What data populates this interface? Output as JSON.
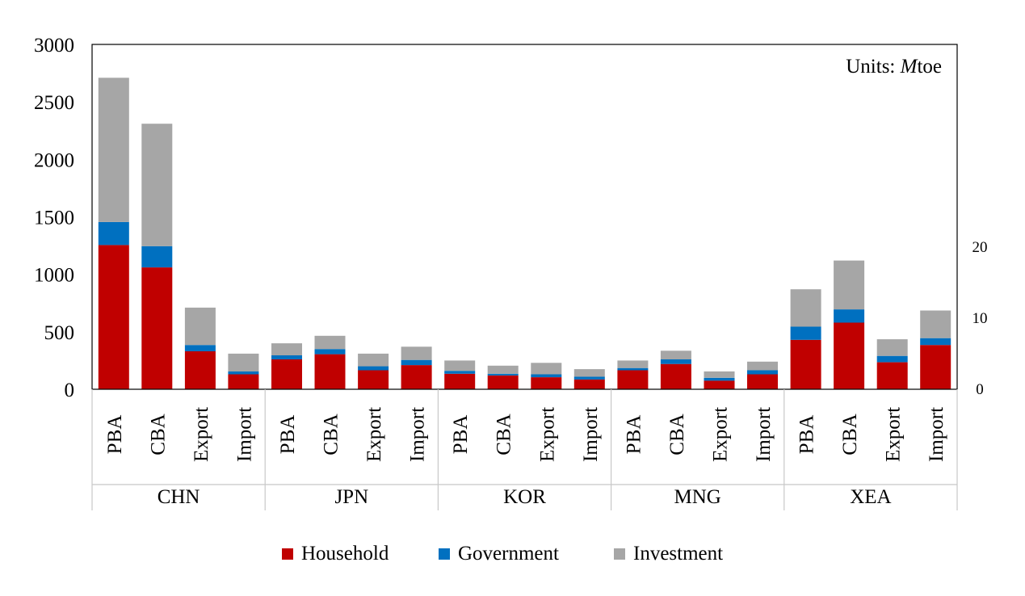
{
  "chart_data": {
    "type": "bar",
    "stacked": true,
    "annotation_prefix": "Units: ",
    "annotation_unit": "M",
    "annotation_suffix": "toe",
    "ylim": [
      0,
      3000
    ],
    "yticks": [
      0,
      500,
      1000,
      1500,
      2000,
      2500,
      3000
    ],
    "secondary_yticks": [
      0,
      10,
      20
    ],
    "groups": [
      {
        "name": "CHN",
        "categories": [
          "PBA",
          "CBA",
          "Export",
          "Import"
        ]
      },
      {
        "name": "JPN",
        "categories": [
          "PBA",
          "CBA",
          "Export",
          "Import"
        ]
      },
      {
        "name": "KOR",
        "categories": [
          "PBA",
          "CBA",
          "Export",
          "Import"
        ]
      },
      {
        "name": "MNG",
        "categories": [
          "PBA",
          "CBA",
          "Export",
          "Import"
        ]
      },
      {
        "name": "XEA",
        "categories": [
          "PBA",
          "CBA",
          "Export",
          "Import"
        ]
      }
    ],
    "series": [
      {
        "name": "Household",
        "color": "#c00000",
        "values": [
          1255,
          1060,
          330,
          130,
          260,
          305,
          165,
          210,
          135,
          120,
          105,
          85,
          165,
          220,
          75,
          130,
          430,
          580,
          235,
          385
        ]
      },
      {
        "name": "Government",
        "color": "#0070c0",
        "values": [
          200,
          185,
          55,
          25,
          35,
          45,
          35,
          45,
          25,
          15,
          25,
          25,
          20,
          40,
          25,
          35,
          115,
          115,
          55,
          60
        ]
      },
      {
        "name": "Investment",
        "color": "#a6a6a6",
        "values": [
          1255,
          1065,
          325,
          155,
          105,
          115,
          110,
          115,
          90,
          70,
          100,
          65,
          65,
          75,
          55,
          75,
          325,
          425,
          145,
          240
        ]
      }
    ],
    "legend_position": "bottom",
    "grid": false
  }
}
